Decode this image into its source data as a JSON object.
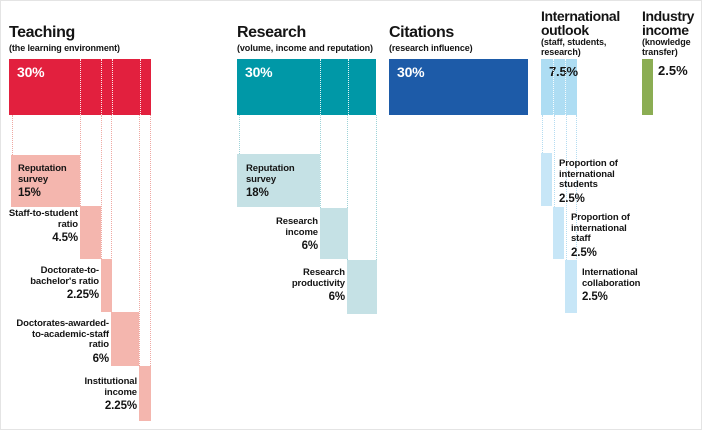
{
  "chart_data": {
    "type": "bar",
    "unit": "%",
    "value_total": 100,
    "layout": "five weighted pillar columns, each pillar bar subdivided by dotted lines into sub-indicator cascades below",
    "colors": {
      "teaching": "#e2203e",
      "teaching_items": "#f4b6ae",
      "research": "#0098a7",
      "research_items": "#c5e1e5",
      "citations": "#1d5ba8",
      "international": "#aeddf3",
      "international_items": "#c7e6f7",
      "industry": "#8bad53",
      "text": "#141414",
      "bar_value_text": "#ffffff"
    },
    "columns": [
      {
        "id": "teaching",
        "title_lines": [
          "Teaching"
        ],
        "subtitle_lines": [
          "(the learning environment)"
        ],
        "value": 30,
        "pct": "30%",
        "color": "#e2203e",
        "item_color": "#f4b6ae",
        "items": [
          {
            "lines": [
              "Reputation",
              "survey"
            ],
            "value": 15,
            "pct": "15%"
          },
          {
            "lines": [
              "Staff-to-student",
              "ratio"
            ],
            "value": 4.5,
            "pct": "4.5%"
          },
          {
            "lines": [
              "Doctorate-to-",
              "bachelor's ratio"
            ],
            "value": 2.25,
            "pct": "2.25%"
          },
          {
            "lines": [
              "Doctorates-awarded-",
              "to-academic-staff",
              "ratio"
            ],
            "value": 6,
            "pct": "6%"
          },
          {
            "lines": [
              "Institutional",
              "income"
            ],
            "value": 2.25,
            "pct": "2.25%"
          }
        ]
      },
      {
        "id": "research",
        "title_lines": [
          "Research"
        ],
        "subtitle_lines": [
          "(volume, income and reputation)"
        ],
        "value": 30,
        "pct": "30%",
        "color": "#0098a7",
        "item_color": "#c5e1e5",
        "items": [
          {
            "lines": [
              "Reputation",
              "survey"
            ],
            "value": 18,
            "pct": "18%"
          },
          {
            "lines": [
              "Research",
              "income"
            ],
            "value": 6,
            "pct": "6%"
          },
          {
            "lines": [
              "Research",
              "productivity"
            ],
            "value": 6,
            "pct": "6%"
          }
        ]
      },
      {
        "id": "citations",
        "title_lines": [
          "Citations"
        ],
        "subtitle_lines": [
          "(research influence)"
        ],
        "value": 30,
        "pct": "30%",
        "color": "#1d5ba8",
        "items": []
      },
      {
        "id": "international-outlook",
        "title_lines": [
          "International",
          "outlook"
        ],
        "subtitle_lines": [
          "(staff, students,",
          "research)"
        ],
        "value": 7.5,
        "pct": "7.5%",
        "color": "#aeddf3",
        "item_color": "#c7e6f7",
        "items": [
          {
            "lines": [
              "Proportion of",
              "international",
              "students"
            ],
            "value": 2.5,
            "pct": "2.5%"
          },
          {
            "lines": [
              "Proportion of",
              "international",
              "staff"
            ],
            "value": 2.5,
            "pct": "2.5%"
          },
          {
            "lines": [
              "International",
              "collaboration"
            ],
            "value": 2.5,
            "pct": "2.5%"
          }
        ]
      },
      {
        "id": "industry-income",
        "title_lines": [
          "Industry",
          "income"
        ],
        "subtitle_lines": [
          "(knowledge",
          "transfer)"
        ],
        "value": 2.5,
        "pct": "2.5%",
        "color": "#8bad53",
        "items": []
      }
    ]
  }
}
